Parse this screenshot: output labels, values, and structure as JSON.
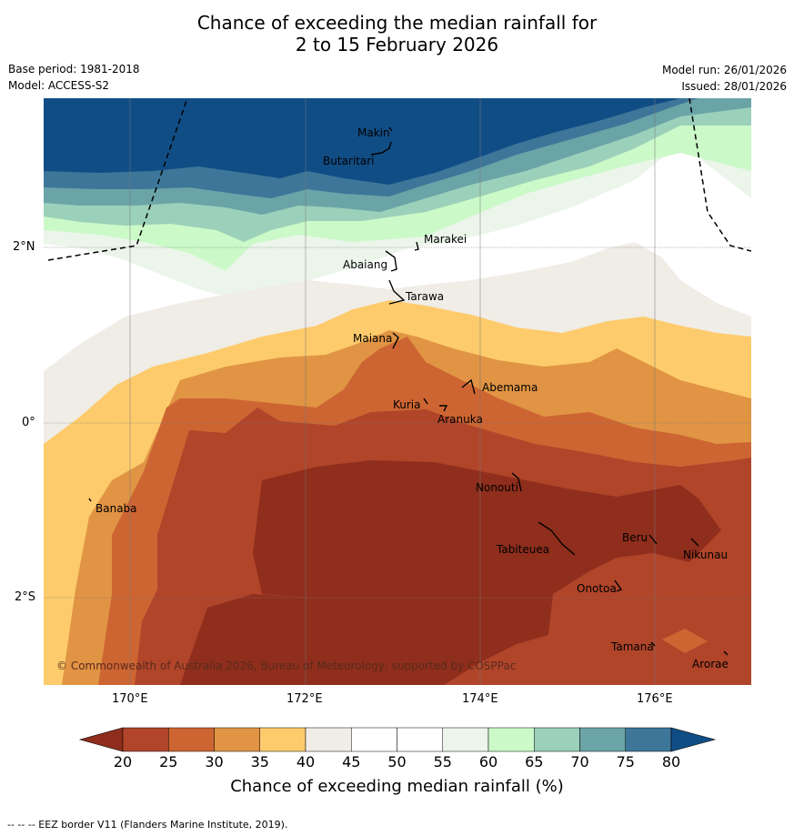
{
  "title": {
    "line1": "Chance of exceeding the median rainfall for",
    "line2": "2 to 15 February 2026"
  },
  "meta": {
    "base_period": "Base period: 1981-2018",
    "model": "Model: ACCESS-S2",
    "model_run": "Model run: 26/01/2026",
    "issued": "Issued: 28/01/2026"
  },
  "axes": {
    "lat_labels": [
      "2°N",
      "0°",
      "2°S"
    ],
    "lon_labels": [
      "170°E",
      "172°E",
      "174°E",
      "176°E"
    ]
  },
  "places": [
    "Makin",
    "Butaritari",
    "Marakei",
    "Abaiang",
    "Tarawa",
    "Maiana",
    "Abemama",
    "Kuria",
    "Aranuka",
    "Nonouti",
    "Banaba",
    "Tabiteuea",
    "Beru",
    "Nikunau",
    "Onotoa",
    "Tamana",
    "Arorae"
  ],
  "copyright": "© Commonwealth of Australia 2026, Bureau of Meteorology, supported by COSPPac",
  "colorbar": {
    "ticks": [
      "20",
      "25",
      "30",
      "35",
      "40",
      "45",
      "50",
      "55",
      "60",
      "65",
      "70",
      "75",
      "80"
    ],
    "colors": [
      "#8f2e1c",
      "#b0452a",
      "#cd6532",
      "#e09444",
      "#fdcb6b",
      "#f0ece6",
      "#ffffff",
      "#ffffff",
      "#ebf5ea",
      "#cbf9c8",
      "#9bd0ba",
      "#6aa4a7",
      "#3d7699",
      "#114d85"
    ],
    "title": "Chance of exceeding median rainfall (%)"
  },
  "footer": "--  --  -- EEZ border V11 (Flanders Marine Institute, 2019)."
}
